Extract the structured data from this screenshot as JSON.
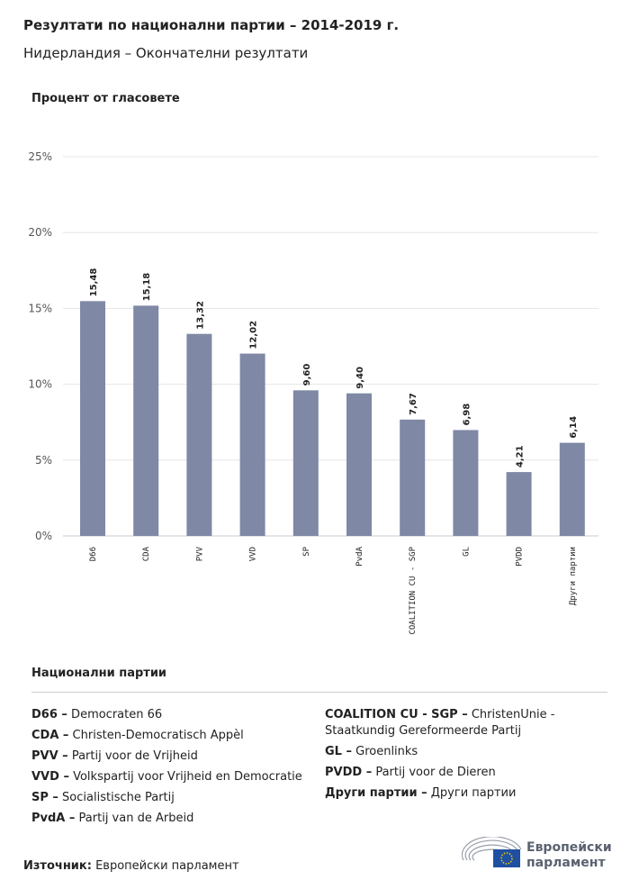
{
  "title": "Резултати по национални партии – 2014-2019 г.",
  "subtitle": "Нидерландия – Окончателни резултати",
  "chart_data": {
    "type": "bar",
    "ylabel": "Процент от гласовете",
    "categories": [
      "D66",
      "CDA",
      "PVV",
      "VVD",
      "SP",
      "PvdA",
      "COALITION CU - SGP",
      "GL",
      "PVDD",
      "Други партии"
    ],
    "values": [
      15.48,
      15.18,
      13.32,
      12.02,
      9.6,
      9.4,
      7.67,
      6.98,
      4.21,
      6.14
    ],
    "data_labels": [
      "15,48",
      "15,18",
      "13,32",
      "12,02",
      "9,60",
      "9,40",
      "7,67",
      "6,98",
      "4,21",
      "6,14"
    ],
    "ylim": [
      0,
      25
    ],
    "yticks": [
      0,
      5,
      10,
      15,
      20,
      25
    ],
    "ytick_labels": [
      "0%",
      "5%",
      "10%",
      "15%",
      "20%",
      "25%"
    ],
    "grid": true,
    "bar_color": "#7f88a5"
  },
  "legend": {
    "title": "Национални партии",
    "left": [
      {
        "abbr": "D66 –",
        "name": "Democraten 66"
      },
      {
        "abbr": "CDA –",
        "name": "Christen-Democratisch Appèl"
      },
      {
        "abbr": "PVV –",
        "name": "Partij voor de Vrijheid"
      },
      {
        "abbr": "VVD –",
        "name": "Volkspartij voor Vrijheid en Democratie"
      },
      {
        "abbr": "SP –",
        "name": "Socialistische Partij"
      },
      {
        "abbr": "PvdA –",
        "name": "Partij van de Arbeid"
      }
    ],
    "right": [
      {
        "abbr": "COALITION CU - SGP –",
        "name": "ChristenUnie - Staatkundig Gereformeerde Partij"
      },
      {
        "abbr": "GL –",
        "name": "Groenlinks"
      },
      {
        "abbr": "PVDD –",
        "name": "Partij voor de Dieren"
      },
      {
        "abbr": "Други партии –",
        "name": "Други партии"
      }
    ]
  },
  "source": {
    "label": "Източник:",
    "value": "Европейски парламент"
  },
  "logo": {
    "line1": "Европейски",
    "line2": "парламент"
  }
}
